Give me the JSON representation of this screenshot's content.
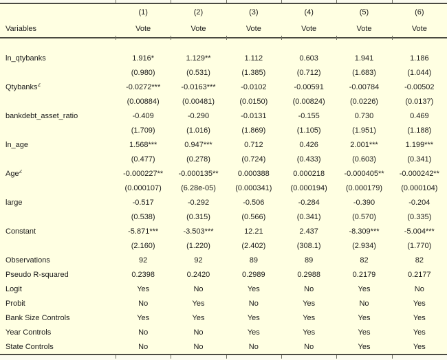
{
  "meta": {
    "colors": {
      "background": "#FFFFE2",
      "margin_strip": "#FBFBEF",
      "rule": "#4A4A41",
      "tick": "#6E6E62",
      "text": "#1A1A1A"
    }
  },
  "header": {
    "variables_label": "Variables",
    "column_numbers": [
      "(1)",
      "(2)",
      "(3)",
      "(4)",
      "(5)",
      "(6)"
    ],
    "dep_var_labels": [
      "Vote",
      "Vote",
      "Vote",
      "Vote",
      "Vote",
      "Vote"
    ]
  },
  "body": {
    "coefficient_rows": [
      {
        "label": "ln_qtybanks",
        "sup": "",
        "coefs": [
          "1.916*",
          "1.129**",
          "1.112",
          "0.603",
          "1.941",
          "1.186"
        ],
        "ses": [
          "(0.980)",
          "(0.531)",
          "(1.385)",
          "(0.712)",
          "(1.683)",
          "(1.044)"
        ]
      },
      {
        "label": "Qtybanks",
        "sup": "2",
        "coefs": [
          "-0.0272***",
          "-0.0163***",
          "-0.0102",
          "-0.00591",
          "-0.00784",
          "-0.00502"
        ],
        "ses": [
          "(0.00884)",
          "(0.00481)",
          "(0.0150)",
          "(0.00824)",
          "(0.0226)",
          "(0.0137)"
        ]
      },
      {
        "label": "bankdebt_asset_ratio",
        "sup": "",
        "coefs": [
          "-0.409",
          "-0.290",
          "-0.0131",
          "-0.155",
          "0.730",
          "0.469"
        ],
        "ses": [
          "(1.709)",
          "(1.016)",
          "(1.869)",
          "(1.105)",
          "(1.951)",
          "(1.188)"
        ]
      },
      {
        "label": "ln_age",
        "sup": "",
        "coefs": [
          "1.568***",
          "0.947***",
          "0.712",
          "0.426",
          "2.001***",
          "1.199***"
        ],
        "ses": [
          "(0.477)",
          "(0.278)",
          "(0.724)",
          "(0.433)",
          "(0.603)",
          "(0.341)"
        ]
      },
      {
        "label": "Age",
        "sup": "2",
        "coefs": [
          "-0.000227**",
          "-0.000135**",
          "0.000388",
          "0.000218",
          "-0.000405**",
          "-0.000242**"
        ],
        "ses": [
          "(0.000107)",
          "(6.28e-05)",
          "(0.000341)",
          "(0.000194)",
          "(0.000179)",
          "(0.000104)"
        ]
      },
      {
        "label": "large",
        "sup": "",
        "coefs": [
          "-0.517",
          "-0.292",
          "-0.506",
          "-0.284",
          "-0.390",
          "-0.204"
        ],
        "ses": [
          "(0.538)",
          "(0.315)",
          "(0.566)",
          "(0.341)",
          "(0.570)",
          "(0.335)"
        ]
      },
      {
        "label": "Constant",
        "sup": "",
        "coefs": [
          "-5.871***",
          "-3.503***",
          "12.21",
          "2.437",
          "-8.309***",
          "-5.004***"
        ],
        "ses": [
          "(2.160)",
          "(1.220)",
          "(2.402)",
          "(308.1)",
          "(2.934)",
          "(1.770)"
        ]
      }
    ],
    "summary_rows": [
      {
        "label": "Observations",
        "values": [
          "92",
          "92",
          "89",
          "89",
          "82",
          "82"
        ]
      },
      {
        "label": "Pseudo R-squared",
        "values": [
          "0.2398",
          "0.2420",
          "0.2989",
          "0.2988",
          "0.2179",
          "0.2177"
        ]
      },
      {
        "label": "Logit",
        "values": [
          "Yes",
          "No",
          "Yes",
          "No",
          "Yes",
          "No"
        ]
      },
      {
        "label": "Probit",
        "values": [
          "No",
          "Yes",
          "No",
          "Yes",
          "No",
          "Yes"
        ]
      },
      {
        "label": "Bank Size Controls",
        "values": [
          "Yes",
          "Yes",
          "Yes",
          "Yes",
          "Yes",
          "Yes"
        ]
      },
      {
        "label": "Year Controls",
        "values": [
          "No",
          "No",
          "Yes",
          "Yes",
          "Yes",
          "Yes"
        ]
      },
      {
        "label": "State Controls",
        "values": [
          "No",
          "No",
          "No",
          "No",
          "Yes",
          "Yes"
        ]
      }
    ]
  }
}
